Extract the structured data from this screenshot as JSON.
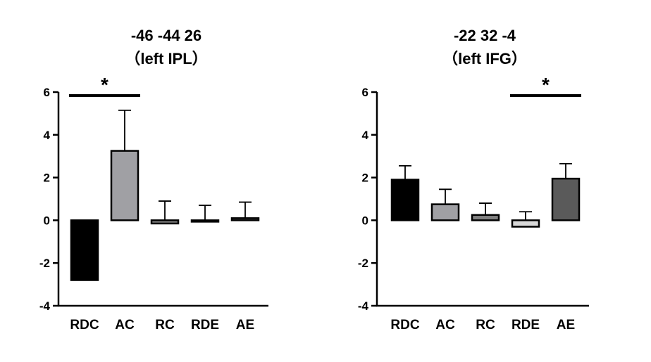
{
  "chart_data": [
    {
      "type": "bar",
      "title": "-46 -44 26",
      "subtitle": "（left IPL）",
      "categories": [
        "RDC",
        "AC",
        "RC",
        "RDE",
        "AE"
      ],
      "values": [
        -2.8,
        3.25,
        -0.15,
        0.0,
        0.1
      ],
      "errors": [
        1.0,
        1.9,
        1.05,
        0.7,
        0.75
      ],
      "colors": [
        "#000000",
        "#a0a0a4",
        "#808080",
        "#d9d9d9",
        "#5a5a5a"
      ],
      "ylim": [
        -4,
        6
      ],
      "yticks": [
        "-4",
        "-2",
        "0",
        "2",
        "4",
        "6"
      ],
      "ytick_values": [
        -4,
        -2,
        0,
        2,
        4,
        6
      ],
      "significance": {
        "from": 0,
        "to": 1,
        "symbol": "*"
      },
      "grid": false
    },
    {
      "type": "bar",
      "title": "-22 32 -4",
      "subtitle": "（left IFG）",
      "categories": [
        "RDC",
        "AC",
        "RC",
        "RDE",
        "AE"
      ],
      "values": [
        1.9,
        0.75,
        0.25,
        -0.3,
        1.95
      ],
      "errors": [
        0.65,
        0.7,
        0.55,
        0.7,
        0.7
      ],
      "colors": [
        "#000000",
        "#a0a0a4",
        "#808080",
        "#d9d9d9",
        "#5a5a5a"
      ],
      "ylim": [
        -4,
        6
      ],
      "yticks": [
        "-4",
        "-2",
        "0",
        "2",
        "4",
        "6"
      ],
      "ytick_values": [
        -4,
        -2,
        0,
        2,
        4,
        6
      ],
      "significance": {
        "from": 3,
        "to": 4,
        "symbol": "*"
      },
      "grid": false
    }
  ]
}
